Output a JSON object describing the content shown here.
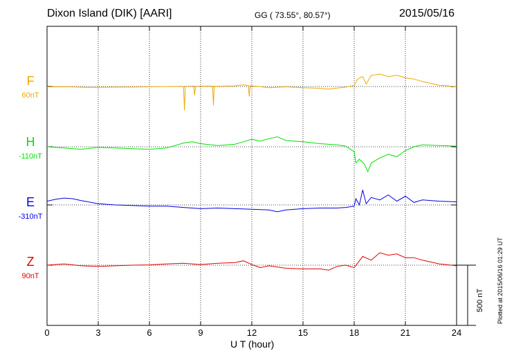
{
  "header": {
    "station": "Dixon Island (DIK)  [AARI]",
    "coords": "GG ( 73.55°,  80.57°)",
    "date": "2015/05/16"
  },
  "footer": {
    "plotted": "Plotted at 2015/06/16 01:29 UT"
  },
  "chart_data": {
    "type": "line",
    "title": "Dixon Island (DIK)  [AARI]",
    "xlabel": "U T (hour)",
    "xlim": [
      0,
      24
    ],
    "xticks": [
      "0",
      "3",
      "6",
      "9",
      "12",
      "15",
      "18",
      "21",
      "24"
    ],
    "scale_bar_label": "500 nT",
    "grid": true,
    "series": [
      {
        "name": "F",
        "baseline": "60nT",
        "color": "#f0a800",
        "x": [
          0,
          1,
          2,
          2.5,
          3,
          4,
          5,
          6,
          7,
          7.8,
          8,
          8.05,
          8.1,
          8.5,
          8.6,
          8.65,
          8.7,
          9,
          9.5,
          9.7,
          9.75,
          9.8,
          10,
          11,
          11.5,
          11.8,
          11.85,
          11.9,
          12,
          12.5,
          13,
          14,
          15,
          16,
          16.5,
          17,
          17.5,
          18,
          18.2,
          18.5,
          18.7,
          19,
          19.5,
          20,
          20.5,
          21,
          21.5,
          22,
          23,
          24
        ],
        "y": [
          -3,
          -2,
          -5,
          -8,
          -6,
          -5,
          -4,
          -2,
          0,
          2,
          1,
          -190,
          1,
          4,
          2,
          -70,
          2,
          3,
          4,
          2,
          -150,
          2,
          3,
          5,
          14,
          8,
          -80,
          6,
          5,
          0,
          -10,
          -2,
          -10,
          -14,
          -20,
          -12,
          -5,
          10,
          60,
          80,
          20,
          90,
          100,
          80,
          90,
          70,
          60,
          40,
          10,
          0
        ]
      },
      {
        "name": "H",
        "baseline": "-110nT",
        "color": "#00e000",
        "x": [
          0,
          1,
          2,
          3,
          4,
          5,
          6,
          7,
          8,
          8.5,
          9,
          10,
          11,
          11.5,
          12,
          12.5,
          13,
          13.5,
          14,
          15,
          16,
          16.5,
          17,
          17.5,
          18,
          18.1,
          18.3,
          18.6,
          18.8,
          19,
          19.5,
          20,
          20.5,
          21,
          21.5,
          22,
          23,
          24
        ],
        "y": [
          0,
          -10,
          -20,
          -5,
          -10,
          -15,
          -20,
          -10,
          30,
          40,
          25,
          10,
          20,
          40,
          60,
          45,
          65,
          80,
          50,
          40,
          25,
          20,
          15,
          5,
          -40,
          -130,
          -100,
          -140,
          -200,
          -130,
          -90,
          -60,
          -80,
          -30,
          0,
          15,
          10,
          5
        ]
      },
      {
        "name": "E",
        "baseline": "-310nT",
        "color": "#0000e0",
        "x": [
          0,
          0.5,
          1,
          1.5,
          2,
          3,
          4,
          5,
          6,
          7,
          8,
          9,
          10,
          11,
          12,
          13,
          13.5,
          14,
          15,
          16,
          17,
          17.5,
          18,
          18.1,
          18.3,
          18.5,
          18.7,
          19,
          19.5,
          20,
          20.5,
          21,
          21.5,
          22,
          23,
          24
        ],
        "y": [
          30,
          45,
          55,
          50,
          35,
          10,
          0,
          -5,
          -10,
          -10,
          -20,
          -30,
          -25,
          -30,
          -35,
          -40,
          -55,
          -40,
          -30,
          -25,
          -25,
          -20,
          -10,
          50,
          0,
          120,
          10,
          60,
          40,
          80,
          30,
          70,
          20,
          40,
          30,
          25
        ]
      },
      {
        "name": "Z",
        "baseline": "90nT",
        "color": "#e00000",
        "x": [
          0,
          1,
          2,
          3,
          4,
          5,
          6,
          7,
          8,
          9,
          10,
          11,
          11.5,
          12,
          12.5,
          13,
          14,
          15,
          16,
          16.5,
          17,
          17.5,
          18,
          18.5,
          19,
          19.5,
          20,
          20.5,
          21,
          21.5,
          22,
          23,
          24
        ],
        "y": [
          0,
          10,
          -5,
          -10,
          -5,
          0,
          2,
          10,
          15,
          5,
          15,
          20,
          35,
          5,
          -20,
          -5,
          -25,
          -30,
          -30,
          -40,
          -10,
          0,
          -20,
          70,
          40,
          100,
          80,
          90,
          60,
          60,
          40,
          10,
          -5
        ]
      }
    ]
  }
}
